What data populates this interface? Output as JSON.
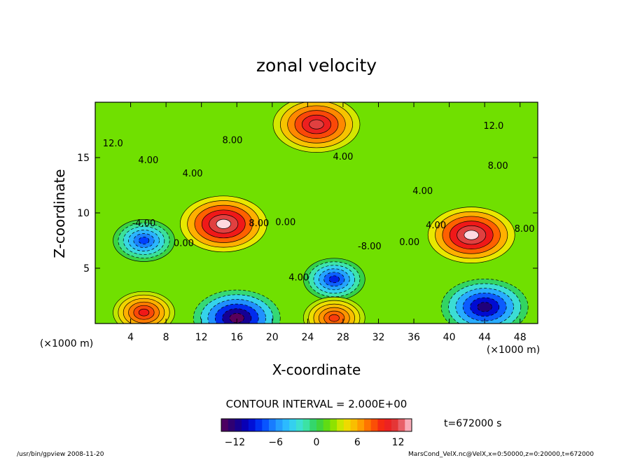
{
  "chart_data": {
    "type": "heatmap",
    "title": "zonal velocity",
    "xlabel": "X-coordinate",
    "ylabel": "Z-coordinate",
    "x_unit": "(×1000 m)",
    "y_unit": "(×1000 m)",
    "x_ticks": [
      4,
      8,
      12,
      16,
      20,
      24,
      28,
      32,
      36,
      40,
      44,
      48
    ],
    "y_ticks": [
      5,
      10,
      15
    ],
    "xlim": [
      0,
      50
    ],
    "ylim": [
      0,
      20
    ],
    "contour_interval_text": "CONTOUR INTERVAL = 2.000E+00",
    "colorbar_ticks": [
      -12,
      -6,
      0,
      6,
      12
    ],
    "colorbar_range": [
      -14,
      14
    ],
    "contour_labels": [
      {
        "text": "12.0",
        "x": 2,
        "y": 16.0
      },
      {
        "text": "8.00",
        "x": 15.5,
        "y": 16.3
      },
      {
        "text": "12.0",
        "x": 45,
        "y": 17.6
      },
      {
        "text": "4.00",
        "x": 6,
        "y": 14.5
      },
      {
        "text": "4.00",
        "x": 28,
        "y": 14.8
      },
      {
        "text": "8.00",
        "x": 45.5,
        "y": 14.0
      },
      {
        "text": "4.00",
        "x": 11,
        "y": 13.3
      },
      {
        "text": "4.00",
        "x": 37,
        "y": 11.7
      },
      {
        "text": "-4.00",
        "x": 5.5,
        "y": 8.8
      },
      {
        "text": "0.00",
        "x": 10,
        "y": 7.0
      },
      {
        "text": "8.00",
        "x": 18.5,
        "y": 8.8
      },
      {
        "text": "0.00",
        "x": 21.5,
        "y": 8.9
      },
      {
        "text": "-8.00",
        "x": 31,
        "y": 6.7
      },
      {
        "text": "0.00",
        "x": 35.5,
        "y": 7.1
      },
      {
        "text": "4.00",
        "x": 38.5,
        "y": 8.6
      },
      {
        "text": "8.00",
        "x": 48.5,
        "y": 8.3
      },
      {
        "text": "4.00",
        "x": 23,
        "y": 3.9
      }
    ],
    "features": [
      {
        "x": 14.5,
        "z": 9,
        "value": 14
      },
      {
        "x": 42.5,
        "z": 8,
        "value": 14
      },
      {
        "x": 5.5,
        "z": 7.5,
        "value": -8
      },
      {
        "x": 27,
        "z": 4,
        "value": -9
      },
      {
        "x": 16,
        "z": 0.5,
        "value": -14
      },
      {
        "x": 44,
        "z": 1.5,
        "value": -12
      },
      {
        "x": 5.5,
        "z": 1,
        "value": 10
      },
      {
        "x": 27,
        "z": 0.5,
        "value": 9
      },
      {
        "x": 25,
        "z": 18,
        "value": 12
      }
    ]
  },
  "time_label": "t=672000 s",
  "footer_left": "/usr/bin/gpview  2008-11-20",
  "footer_right": "MarsCond_VelX.nc@VelX,x=0:50000,z=0:20000,t=672000"
}
